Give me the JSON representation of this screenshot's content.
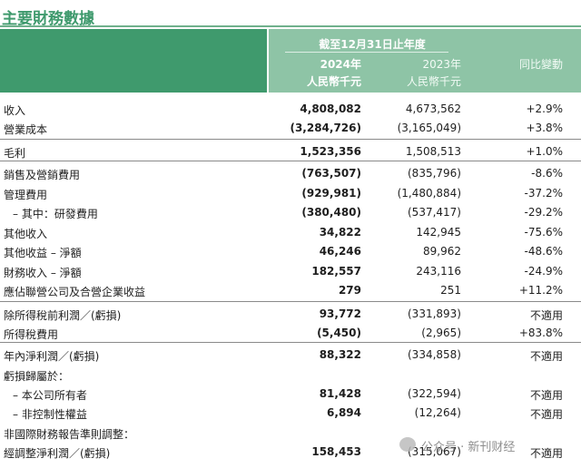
{
  "title": "主要財務數據",
  "header": {
    "period": "截至12月31日止年度",
    "col_2024_year": "2024年",
    "col_2024_unit": "人民幣千元",
    "col_2023_year": "2023年",
    "col_2023_unit": "人民幣千元",
    "col_change": "同比變動"
  },
  "rows": [
    {
      "label": "收入",
      "v2024": "4,808,082",
      "v2023": "4,673,562",
      "change": "+2.9%"
    },
    {
      "label": "營業成本",
      "v2024": "(3,284,726)",
      "v2023": "(3,165,049)",
      "change": "+3.8%"
    },
    {
      "label": "毛利",
      "v2024": "1,523,356",
      "v2023": "1,508,513",
      "change": "+1.0%"
    },
    {
      "label": "銷售及營銷費用",
      "v2024": "(763,507)",
      "v2023": "(835,796)",
      "change": "-8.6%"
    },
    {
      "label": "管理費用",
      "v2024": "(929,981)",
      "v2023": "(1,480,884)",
      "change": "-37.2%"
    },
    {
      "label": "– 其中：研發費用",
      "v2024": "(380,480)",
      "v2023": "(537,417)",
      "change": "-29.2%"
    },
    {
      "label": "其他收入",
      "v2024": "34,822",
      "v2023": "142,945",
      "change": "-75.6%"
    },
    {
      "label": "其他收益 – 淨額",
      "v2024": "46,246",
      "v2023": "89,962",
      "change": "-48.6%"
    },
    {
      "label": "財務收入 – 淨額",
      "v2024": "182,557",
      "v2023": "243,116",
      "change": "-24.9%"
    },
    {
      "label": "應佔聯營公司及合營企業收益",
      "v2024": "279",
      "v2023": "251",
      "change": "+11.2%"
    },
    {
      "label": "除所得稅前利潤／(虧損)",
      "v2024": "93,772",
      "v2023": "(331,893)",
      "change": "不適用"
    },
    {
      "label": "所得稅費用",
      "v2024": "(5,450)",
      "v2023": "(2,965)",
      "change": "+83.8%"
    },
    {
      "label": "年內淨利潤／(虧損)",
      "v2024": "88,322",
      "v2023": "(334,858)",
      "change": "不適用"
    },
    {
      "label": "虧損歸屬於：",
      "v2024": "",
      "v2023": "",
      "change": ""
    },
    {
      "label": "– 本公司所有者",
      "v2024": "81,428",
      "v2023": "(322,594)",
      "change": "不適用"
    },
    {
      "label": "– 非控制性權益",
      "v2024": "6,894",
      "v2023": "(12,264)",
      "change": "不適用"
    },
    {
      "label": "非國際財務報告準則調整：",
      "v2024": "",
      "v2023": "",
      "change": ""
    },
    {
      "label": "經調整淨利潤／(虧損)",
      "v2024": "158,453",
      "v2023": "(315,067)",
      "change": "不適用"
    }
  ],
  "watermark": {
    "text": "公众号 · 新刊财经",
    "icon": "wechat-icon"
  },
  "colors": {
    "accent": "#3f9a6d",
    "header_light": "#8ec4a6"
  }
}
